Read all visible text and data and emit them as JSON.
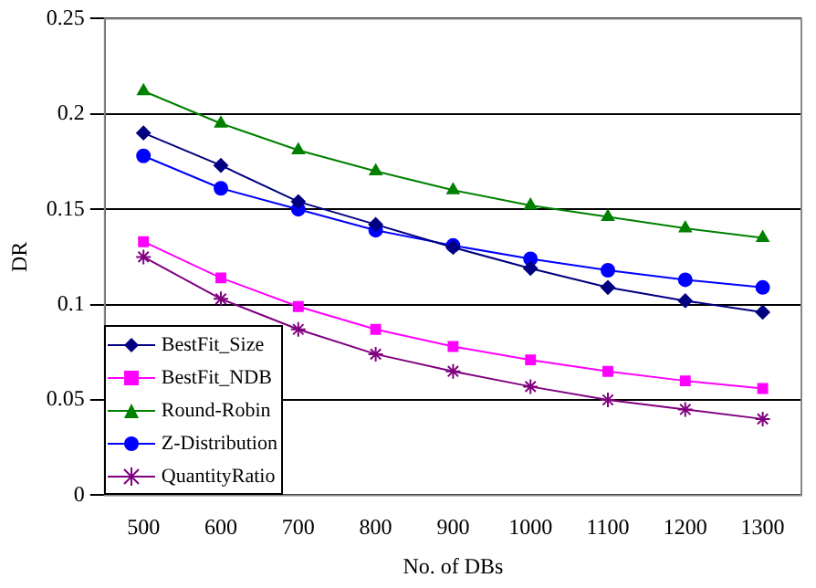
{
  "chart_data": {
    "type": "line",
    "xlabel": "No. of DBs",
    "ylabel": "DR",
    "x": [
      500,
      600,
      700,
      800,
      900,
      1000,
      1100,
      1200,
      1300
    ],
    "xlim": [
      450,
      1350
    ],
    "xticks": [
      500,
      600,
      700,
      800,
      900,
      1000,
      1100,
      1200,
      1300
    ],
    "ylim": [
      0,
      0.25
    ],
    "yticks": [
      0,
      0.05,
      0.1,
      0.15,
      0.2,
      0.25
    ],
    "grid": "y",
    "legend": "bottom left",
    "series": [
      {
        "name": "BestFit_Size",
        "color": "#000080",
        "marker": "diamond",
        "values": [
          0.19,
          0.173,
          0.154,
          0.142,
          0.13,
          0.119,
          0.109,
          0.102,
          0.096
        ]
      },
      {
        "name": "BestFit_NDB",
        "color": "#ff00ff",
        "marker": "square",
        "values": [
          0.133,
          0.114,
          0.099,
          0.087,
          0.078,
          0.071,
          0.065,
          0.06,
          0.056
        ]
      },
      {
        "name": "Round-Robin",
        "color": "#008000",
        "marker": "triangle",
        "values": [
          0.212,
          0.195,
          0.181,
          0.17,
          0.16,
          0.152,
          0.146,
          0.14,
          0.135
        ]
      },
      {
        "name": "Z-Distribution",
        "color": "#0000ff",
        "marker": "circle",
        "values": [
          0.178,
          0.161,
          0.15,
          0.139,
          0.131,
          0.124,
          0.118,
          0.113,
          0.109
        ]
      },
      {
        "name": "QuantityRatio",
        "color": "#800080",
        "marker": "cross",
        "values": [
          0.125,
          0.103,
          0.087,
          0.074,
          0.065,
          0.057,
          0.05,
          0.045,
          0.04
        ]
      }
    ]
  }
}
